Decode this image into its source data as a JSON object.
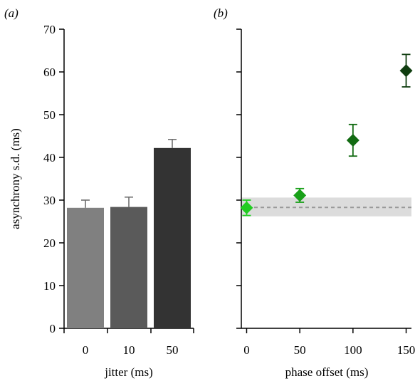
{
  "chart_data": [
    {
      "type": "bar",
      "panel_label": "(a)",
      "categories": [
        "0",
        "10",
        "50"
      ],
      "values": [
        28.2,
        28.4,
        42.2
      ],
      "errors": [
        1.8,
        2.3,
        2.0
      ],
      "bar_colors": [
        "#808080",
        "#5a5a5a",
        "#333333"
      ],
      "error_color": "#707070",
      "xlabel": "jitter (ms)",
      "ylabel": "asynchrony s.d. (ms)",
      "ylim": [
        0,
        70
      ],
      "yticks": [
        0,
        10,
        20,
        30,
        40,
        50,
        60,
        70
      ],
      "grid": false
    },
    {
      "type": "scatter",
      "panel_label": "(b)",
      "x": [
        0,
        50,
        100,
        150
      ],
      "y": [
        28.2,
        31.1,
        44.0,
        60.3
      ],
      "errors": [
        1.8,
        1.6,
        3.7,
        3.8
      ],
      "point_colors": [
        "#22cc22",
        "#18a018",
        "#126b12",
        "#0f3d0f"
      ],
      "marker": "diamond",
      "xlabel": "phase offset (ms)",
      "xticks": [
        0,
        50,
        100,
        150
      ],
      "xlim": [
        -5,
        155
      ],
      "ylim": [
        0,
        70
      ],
      "yticks": [
        0,
        10,
        20,
        30,
        40,
        50,
        60,
        70
      ],
      "reference_line": {
        "y": 28.3,
        "band": [
          26.2,
          30.6
        ],
        "style": "dashed",
        "color": "#999999",
        "band_color": "#dcdcdc"
      },
      "grid": false
    }
  ]
}
